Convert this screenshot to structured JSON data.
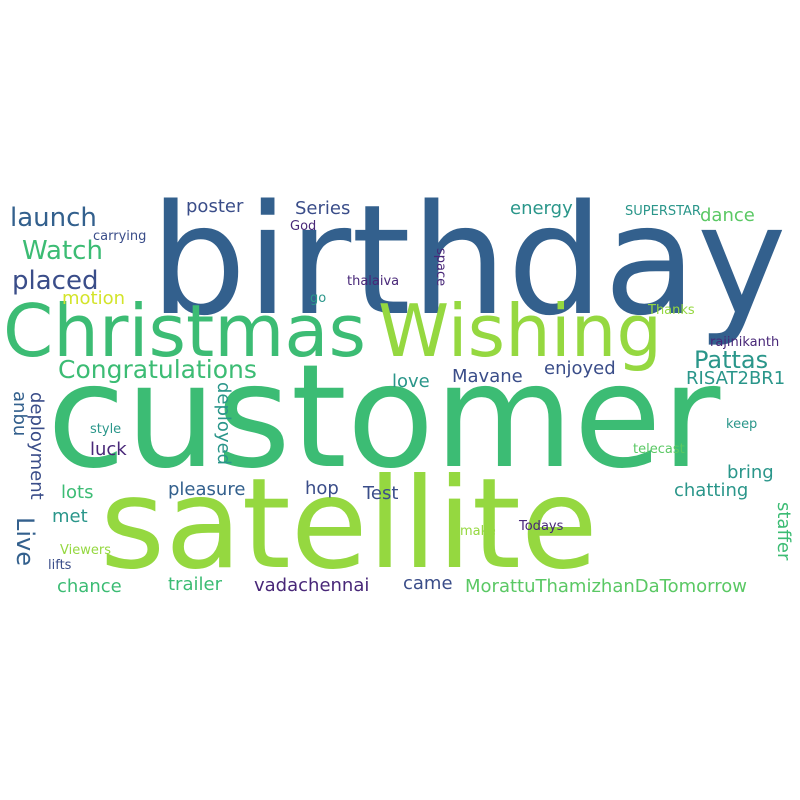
{
  "colors": {
    "background": "#ffffff",
    "dark_blue": "#33608d",
    "navy": "#3a4d89",
    "purple": "#482778",
    "teal": "#2a968a",
    "green": "#3cbc74",
    "light_green": "#5ac864",
    "lime": "#95d840",
    "yellow": "#d3e42a"
  },
  "words": [
    {
      "text": "birthday",
      "color": "#33608d"
    },
    {
      "text": "customer",
      "color": "#3cbc74"
    },
    {
      "text": "satellite",
      "color": "#95d840"
    },
    {
      "text": "Christmas",
      "color": "#3cbc74"
    },
    {
      "text": "Wishing",
      "color": "#95d840"
    },
    {
      "text": "launch",
      "color": "#33608d"
    },
    {
      "text": "Watch",
      "color": "#3cbc74"
    },
    {
      "text": "placed",
      "color": "#3a4d89"
    },
    {
      "text": "motion",
      "color": "#d3e42a"
    },
    {
      "text": "Congratulations",
      "color": "#3cbc74"
    },
    {
      "text": "Pattas",
      "color": "#2a968a"
    },
    {
      "text": "poster",
      "color": "#3a4d89"
    },
    {
      "text": "Series",
      "color": "#3a4d89"
    },
    {
      "text": "energy",
      "color": "#2a968a"
    },
    {
      "text": "dance",
      "color": "#5ac864"
    },
    {
      "text": "SUPERSTAR",
      "color": "#2a968a"
    },
    {
      "text": "carrying",
      "color": "#3a4d89"
    },
    {
      "text": "God",
      "color": "#482778"
    },
    {
      "text": "thalaiva",
      "color": "#482778"
    },
    {
      "text": "space",
      "color": "#482778"
    },
    {
      "text": "go",
      "color": "#2a968a"
    },
    {
      "text": "Thanks",
      "color": "#95d840"
    },
    {
      "text": "rajinikanth",
      "color": "#482778"
    },
    {
      "text": "RISAT2BR1",
      "color": "#2a968a"
    },
    {
      "text": "enjoyed",
      "color": "#3a4d89"
    },
    {
      "text": "Mavane",
      "color": "#3a4d89"
    },
    {
      "text": "love",
      "color": "#2a968a"
    },
    {
      "text": "anbu",
      "color": "#33608d"
    },
    {
      "text": "deployment",
      "color": "#3a4d89"
    },
    {
      "text": "deployed",
      "color": "#2a968a"
    },
    {
      "text": "luck",
      "color": "#482778"
    },
    {
      "text": "style",
      "color": "#2a968a"
    },
    {
      "text": "keep",
      "color": "#2a968a"
    },
    {
      "text": "telecast",
      "color": "#5ac864"
    },
    {
      "text": "bring",
      "color": "#2a968a"
    },
    {
      "text": "chatting",
      "color": "#2a968a"
    },
    {
      "text": "lots",
      "color": "#3cbc74"
    },
    {
      "text": "pleasure",
      "color": "#33608d"
    },
    {
      "text": "hop",
      "color": "#3a4d89"
    },
    {
      "text": "Test",
      "color": "#3a4d89"
    },
    {
      "text": "Live",
      "color": "#33608d"
    },
    {
      "text": "met",
      "color": "#2a968a"
    },
    {
      "text": "staffer",
      "color": "#3cbc74"
    },
    {
      "text": "make",
      "color": "#95d840"
    },
    {
      "text": "Todays",
      "color": "#482778"
    },
    {
      "text": "Viewers",
      "color": "#95d840"
    },
    {
      "text": "lifts",
      "color": "#3a4d89"
    },
    {
      "text": "chance",
      "color": "#3cbc74"
    },
    {
      "text": "trailer",
      "color": "#3cbc74"
    },
    {
      "text": "vadachennai",
      "color": "#482778"
    },
    {
      "text": "came",
      "color": "#3a4d89"
    },
    {
      "text": "MorattuThamizhanDaTomorrow",
      "color": "#5ac864"
    }
  ]
}
